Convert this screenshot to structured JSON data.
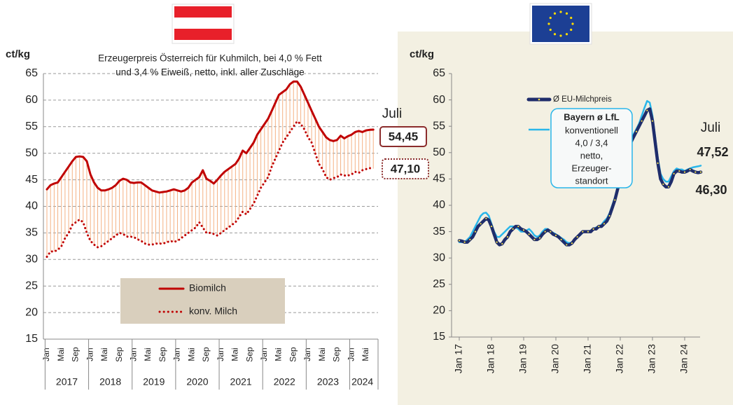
{
  "chart_data": [
    {
      "type": "line",
      "title": [
        "Erzeugerpreis Österreich für Kuhmilch, bei 4,0 % Fett",
        "und 3,4 % Eiweiß, netto, inkl. aller Zuschläge"
      ],
      "y_label": "ct/kg",
      "annotation": "Juli",
      "categories": [
        "Jan",
        null,
        null,
        null,
        "Mai",
        null,
        null,
        null,
        "Sep",
        null,
        null,
        null,
        "Jan",
        null,
        null,
        null,
        "Mai",
        null,
        null,
        null,
        "Sep",
        null,
        null,
        null,
        "Jan",
        null,
        null,
        null,
        "Mai",
        null,
        null,
        null,
        "Sep",
        null,
        null,
        null,
        "Jan",
        null,
        null,
        null,
        "Mai",
        null,
        null,
        null,
        "Sep",
        null,
        null,
        null,
        "Jan",
        null,
        null,
        null,
        "Mai",
        null,
        null,
        null,
        "Sep",
        null,
        null,
        null,
        "Jan",
        null,
        null,
        null,
        "Mai",
        null,
        null,
        null,
        "Sep",
        null,
        null,
        null,
        "Jan",
        null,
        null,
        null,
        "Mai",
        null,
        null,
        null,
        "Sep",
        null,
        null,
        null,
        "Jan",
        null,
        null,
        null,
        "Mai",
        null,
        null
      ],
      "years": [
        "2017",
        "2018",
        "2019",
        "2020",
        "2021",
        "2022",
        "2023",
        "2024"
      ],
      "ylim": [
        15,
        65
      ],
      "yticks": [
        15,
        20,
        25,
        30,
        35,
        40,
        45,
        50,
        55,
        60,
        65
      ],
      "grid": true,
      "spread_color": "#f4b183",
      "series": [
        {
          "name": "Biomilch",
          "color": "#c00000",
          "line_style": "solid",
          "values": [
            43.2,
            44,
            44.3,
            44.5,
            45.5,
            46.5,
            47.5,
            48.5,
            49.3,
            49.4,
            49.3,
            48.5,
            46,
            44.5,
            43.5,
            43,
            43,
            43.2,
            43.5,
            44,
            44.8,
            45.2,
            45,
            44.5,
            44.4,
            44.5,
            44.5,
            44,
            43.5,
            43,
            42.8,
            42.6,
            42.7,
            42.8,
            43,
            43.2,
            43,
            42.8,
            43,
            43.5,
            44.5,
            45,
            45.5,
            46.8,
            45.2,
            44.8,
            44.3,
            45,
            45.8,
            46.5,
            47,
            47.5,
            48,
            49,
            50.5,
            50,
            51,
            52,
            53.5,
            54.5,
            55.5,
            56.5,
            58,
            59.5,
            61,
            61.5,
            62,
            63,
            63.5,
            63.5,
            62.5,
            61,
            59.5,
            58,
            56.5,
            55,
            54,
            53,
            52.5,
            52.3,
            52.5,
            53.3,
            52.8,
            53.2,
            53.5,
            54,
            54.2,
            54,
            54.3,
            54.4,
            54.45
          ],
          "value_labels": [
            null,
            null,
            null,
            null,
            null,
            null,
            null,
            null,
            null,
            null,
            null,
            null,
            null,
            null,
            null,
            null,
            null,
            null,
            null,
            null,
            null,
            null,
            null,
            null,
            null,
            null,
            null,
            null,
            null,
            null,
            null,
            null,
            null,
            null,
            null,
            null,
            null,
            null,
            null,
            null,
            null,
            null,
            null,
            null,
            null,
            null,
            null,
            null,
            null,
            null,
            null,
            null,
            null,
            null,
            null,
            null,
            null,
            null,
            null,
            null,
            null,
            null,
            null,
            null,
            null,
            null,
            null,
            null,
            null,
            null,
            null,
            null,
            null,
            null,
            null,
            null,
            null,
            null,
            null,
            null,
            null,
            null,
            null,
            null,
            null,
            null,
            null,
            null,
            null,
            null,
            "54,45"
          ]
        },
        {
          "name": "konv. Milch",
          "color": "#c00000",
          "line_style": "dotted",
          "values": [
            30.5,
            31.5,
            31.5,
            31.8,
            32.5,
            34,
            35,
            36.5,
            37,
            37.5,
            37,
            35,
            33.5,
            32.8,
            32.3,
            32.5,
            33,
            33.5,
            34,
            34.5,
            35,
            34.8,
            34.3,
            34.3,
            34.2,
            33.8,
            33.5,
            33,
            32.8,
            32.8,
            33,
            33,
            33,
            33.2,
            33.5,
            33.3,
            33.5,
            34,
            34.5,
            35,
            35.5,
            36,
            37,
            36,
            35,
            35,
            34.8,
            34.5,
            35,
            35.5,
            36,
            36.5,
            37,
            38,
            39,
            38.5,
            39.5,
            40.5,
            42,
            43.5,
            44.5,
            45.5,
            47.5,
            49,
            50.5,
            52,
            53,
            54,
            55,
            56,
            55.5,
            54.5,
            53,
            52,
            50,
            48,
            47,
            45.5,
            45,
            45.3,
            45.5,
            46,
            45.8,
            45.8,
            46,
            46.5,
            46.3,
            46.8,
            47,
            47.2,
            47.1
          ],
          "value_labels": [
            null,
            null,
            null,
            null,
            null,
            null,
            null,
            null,
            null,
            null,
            null,
            null,
            null,
            null,
            null,
            null,
            null,
            null,
            null,
            null,
            null,
            null,
            null,
            null,
            null,
            null,
            null,
            null,
            null,
            null,
            null,
            null,
            null,
            null,
            null,
            null,
            null,
            null,
            null,
            null,
            null,
            null,
            null,
            null,
            null,
            null,
            null,
            null,
            null,
            null,
            null,
            null,
            null,
            null,
            null,
            null,
            null,
            null,
            null,
            null,
            null,
            null,
            null,
            null,
            null,
            null,
            null,
            null,
            null,
            null,
            null,
            null,
            null,
            null,
            null,
            null,
            null,
            null,
            null,
            null,
            null,
            null,
            null,
            null,
            null,
            null,
            null,
            null,
            null,
            null,
            "47,10"
          ]
        }
      ]
    },
    {
      "type": "line",
      "y_label": "ct/kg",
      "annotation": "Juli",
      "categories": [
        "Jan 17",
        null,
        null,
        null,
        null,
        null,
        null,
        null,
        null,
        null,
        null,
        null,
        "Jan 18",
        null,
        null,
        null,
        null,
        null,
        null,
        null,
        null,
        null,
        null,
        null,
        "Jan 19",
        null,
        null,
        null,
        null,
        null,
        null,
        null,
        null,
        null,
        null,
        null,
        "Jan 20",
        null,
        null,
        null,
        null,
        null,
        null,
        null,
        null,
        null,
        null,
        null,
        "Jan 21",
        null,
        null,
        null,
        null,
        null,
        null,
        null,
        null,
        null,
        null,
        null,
        "Jan 22",
        null,
        null,
        null,
        null,
        null,
        null,
        null,
        null,
        null,
        null,
        null,
        "Jan 23",
        null,
        null,
        null,
        null,
        null,
        null,
        null,
        null,
        null,
        null,
        null,
        "Jan 24",
        null,
        null,
        null,
        null,
        null,
        null
      ],
      "ylim": [
        15,
        65
      ],
      "yticks": [
        15,
        20,
        25,
        30,
        35,
        40,
        45,
        50,
        55,
        60,
        65
      ],
      "grid": false,
      "legend_note": [
        "konventionell",
        "4,0 / 3,4",
        "netto,",
        "Erzeuger-",
        "standort"
      ],
      "series": [
        {
          "name": "Ø EU-Milchpreis",
          "color": "#1f2d6b",
          "marker_color": "#f5e04a",
          "line_style": "solid",
          "values": [
            33.3,
            33.2,
            33,
            33,
            33.5,
            34,
            35,
            36,
            36.5,
            37,
            37.5,
            37.2,
            36,
            34.5,
            33,
            32.5,
            32.7,
            33.5,
            34,
            35,
            35.5,
            36,
            36,
            35.5,
            35.3,
            35,
            34.5,
            34,
            33.5,
            33.5,
            33.8,
            34.5,
            35,
            35.3,
            35,
            34.5,
            34.3,
            34,
            33.5,
            33,
            32.5,
            32.5,
            32.8,
            33.5,
            34,
            34.5,
            35,
            35,
            35,
            35,
            35.5,
            35.5,
            36,
            36,
            36.5,
            37,
            38,
            39.5,
            41,
            43,
            45,
            47,
            49,
            51,
            52,
            53,
            54,
            55,
            56,
            57,
            58,
            58.3,
            56,
            52,
            48,
            45,
            44,
            43.5,
            43.5,
            44.5,
            46,
            46.5,
            46.5,
            46.3,
            46.3,
            46.5,
            46.8,
            46.5,
            46.3,
            46.2,
            46.3
          ],
          "value_labels": [
            null,
            null,
            null,
            null,
            null,
            null,
            null,
            null,
            null,
            null,
            null,
            null,
            null,
            null,
            null,
            null,
            null,
            null,
            null,
            null,
            null,
            null,
            null,
            null,
            null,
            null,
            null,
            null,
            null,
            null,
            null,
            null,
            null,
            null,
            null,
            null,
            null,
            null,
            null,
            null,
            null,
            null,
            null,
            null,
            null,
            null,
            null,
            null,
            null,
            null,
            null,
            null,
            null,
            null,
            null,
            null,
            null,
            null,
            null,
            null,
            null,
            null,
            null,
            null,
            null,
            null,
            null,
            null,
            null,
            null,
            null,
            null,
            null,
            null,
            null,
            null,
            null,
            null,
            null,
            null,
            null,
            null,
            null,
            null,
            null,
            null,
            null,
            null,
            null,
            null,
            "46,30"
          ]
        },
        {
          "name": "Bayern ø LfL",
          "color": "#29b6ea",
          "line_style": "solid",
          "values": [
            33,
            33,
            33,
            33.5,
            34,
            35,
            36,
            37,
            38,
            38.5,
            38.6,
            38,
            36.5,
            35,
            34,
            34,
            34.5,
            35,
            35.5,
            36,
            36,
            35.8,
            35.5,
            35,
            35,
            35.2,
            35.5,
            35,
            34.3,
            34,
            34.3,
            35,
            35.5,
            35.5,
            35,
            34.8,
            34.5,
            34.2,
            33.8,
            33.5,
            33,
            32.8,
            33,
            33.5,
            34,
            34.3,
            34.8,
            35,
            35,
            35.2,
            35.5,
            35.8,
            36,
            36.3,
            37,
            37.5,
            38.5,
            40,
            41.5,
            43.5,
            45.5,
            47.5,
            49.5,
            51,
            52.5,
            53.5,
            54.5,
            55.5,
            57,
            58.5,
            59.8,
            59.5,
            57,
            53,
            49,
            46,
            45,
            44.5,
            44.5,
            45.5,
            46.5,
            47,
            46.8,
            46.8,
            46.5,
            46.8,
            47,
            47.2,
            47.3,
            47.4,
            47.52
          ],
          "value_labels": [
            null,
            null,
            null,
            null,
            null,
            null,
            null,
            null,
            null,
            null,
            null,
            null,
            null,
            null,
            null,
            null,
            null,
            null,
            null,
            null,
            null,
            null,
            null,
            null,
            null,
            null,
            null,
            null,
            null,
            null,
            null,
            null,
            null,
            null,
            null,
            null,
            null,
            null,
            null,
            null,
            null,
            null,
            null,
            null,
            null,
            null,
            null,
            null,
            null,
            null,
            null,
            null,
            null,
            null,
            null,
            null,
            null,
            null,
            null,
            null,
            null,
            null,
            null,
            null,
            null,
            null,
            null,
            null,
            null,
            null,
            null,
            null,
            null,
            null,
            null,
            null,
            null,
            null,
            null,
            null,
            null,
            null,
            null,
            null,
            null,
            null,
            null,
            null,
            null,
            null,
            "47,52"
          ]
        }
      ]
    }
  ]
}
